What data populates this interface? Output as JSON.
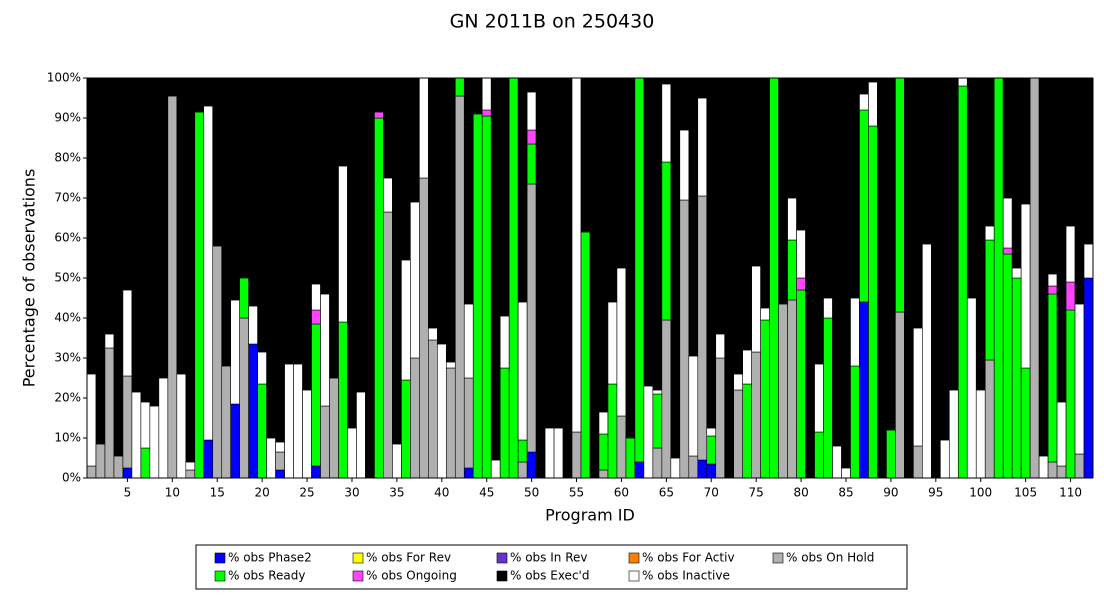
{
  "chart_data": {
    "type": "stacked_bar",
    "title": "GN 2011B on 250430",
    "x_label": "Program ID",
    "y_label": "Percentage of observations",
    "ylim": [
      0,
      100
    ],
    "yticks": [
      {
        "value": 0,
        "label": "0%"
      },
      {
        "value": 10,
        "label": "10%"
      },
      {
        "value": 20,
        "label": "20%"
      },
      {
        "value": 30,
        "label": "30%"
      },
      {
        "value": 40,
        "label": "40%"
      },
      {
        "value": 50,
        "label": "50%"
      },
      {
        "value": 60,
        "label": "60%"
      },
      {
        "value": 70,
        "label": "70%"
      },
      {
        "value": 80,
        "label": "80%"
      },
      {
        "value": 90,
        "label": "90%"
      },
      {
        "value": 100,
        "label": "100%"
      }
    ],
    "legend": "bottom",
    "categories": [
      null,
      null,
      null,
      null,
      5,
      null,
      null,
      null,
      null,
      10,
      null,
      null,
      null,
      null,
      15,
      null,
      null,
      null,
      null,
      20,
      null,
      null,
      null,
      null,
      25,
      null,
      null,
      null,
      null,
      30,
      null,
      null,
      null,
      null,
      35,
      null,
      null,
      null,
      null,
      40,
      null,
      null,
      null,
      null,
      45,
      null,
      null,
      null,
      null,
      50,
      null,
      null,
      null,
      null,
      55,
      null,
      null,
      null,
      null,
      60,
      null,
      null,
      null,
      null,
      65,
      null,
      null,
      null,
      null,
      70,
      null,
      null,
      null,
      null,
      75,
      null,
      null,
      null,
      null,
      80,
      null,
      null,
      null,
      null,
      85,
      null,
      null,
      null,
      null,
      90,
      null,
      null,
      null,
      null,
      95,
      null,
      null,
      null,
      null,
      100,
      null,
      null,
      null,
      null,
      105,
      null,
      null,
      null,
      null,
      110,
      null,
      null
    ],
    "series": [
      {
        "name": "% obs Phase2",
        "color": "#0000ff",
        "values": [
          0,
          0,
          0,
          0,
          2.5,
          0,
          0,
          0,
          0,
          0,
          0,
          0,
          0,
          9.5,
          0,
          0,
          18.5,
          0,
          33.5,
          0,
          0,
          2,
          0,
          0,
          0,
          3,
          0,
          0,
          0,
          0,
          0,
          0,
          0,
          0,
          0,
          0,
          0,
          0,
          0,
          0,
          0,
          0,
          2.5,
          0,
          0,
          0,
          0,
          0,
          0,
          6.5,
          0,
          0,
          0,
          0,
          0,
          0,
          0,
          0,
          0,
          0,
          0,
          4,
          0,
          0,
          0,
          0,
          0,
          0,
          4.5,
          3.5,
          0,
          0,
          0,
          0,
          0,
          0,
          0,
          0,
          0,
          0,
          0,
          0,
          0,
          0,
          0,
          0,
          44,
          0,
          0,
          0,
          0,
          0,
          0,
          0,
          0,
          0,
          0,
          0,
          0,
          0,
          0,
          0,
          0,
          0,
          0,
          0,
          0,
          0,
          0,
          0,
          0,
          50
        ]
      },
      {
        "name": "% obs For Rev",
        "color": "#ffff00",
        "values": [
          0,
          0,
          0,
          0,
          0,
          0,
          0,
          0,
          0,
          0,
          0,
          0,
          0,
          0,
          0,
          0,
          0,
          0,
          0,
          0,
          0,
          0,
          0,
          0,
          0,
          0,
          0,
          0,
          0,
          0,
          0,
          0,
          0,
          0,
          0,
          0,
          0,
          0,
          0,
          0,
          0,
          0,
          0,
          0,
          0,
          0,
          0,
          0,
          0,
          0,
          0,
          0,
          0,
          0,
          0,
          0,
          0,
          0,
          0,
          0,
          0,
          0,
          0,
          0,
          0,
          0,
          0,
          0,
          0,
          0,
          0,
          0,
          0,
          0,
          0,
          0,
          0,
          0,
          0,
          0,
          0,
          0,
          0,
          0,
          0,
          0,
          0,
          0,
          0,
          0,
          0,
          0,
          0,
          0,
          0,
          0,
          0,
          0,
          0,
          0,
          0,
          0,
          0,
          0,
          0,
          0,
          0,
          0,
          0,
          0,
          0,
          0
        ]
      },
      {
        "name": "% obs In Rev",
        "color": "#6633cc",
        "values": [
          0,
          0,
          0,
          0,
          0,
          0,
          0,
          0,
          0,
          0,
          0,
          0,
          0,
          0,
          0,
          0,
          0,
          0,
          0,
          0,
          0,
          0,
          0,
          0,
          0,
          0,
          0,
          0,
          0,
          0,
          0,
          0,
          0,
          0,
          0,
          0,
          0,
          0,
          0,
          0,
          0,
          0,
          0,
          0,
          0,
          0,
          0,
          0,
          0,
          0,
          0,
          0,
          0,
          0,
          0,
          0,
          0,
          0,
          0,
          0,
          0,
          0,
          0,
          0,
          0,
          0,
          0,
          0,
          0,
          0,
          0,
          0,
          0,
          0,
          0,
          0,
          0,
          0,
          0,
          0,
          0,
          0,
          0,
          0,
          0,
          0,
          0,
          0,
          0,
          0,
          0,
          0,
          0,
          0,
          0,
          0,
          0,
          0,
          0,
          0,
          0,
          0,
          0,
          0,
          0,
          0,
          0,
          0,
          0,
          0,
          0,
          0
        ]
      },
      {
        "name": "% obs For Activ",
        "color": "#ff8000",
        "values": [
          0,
          0,
          0,
          0,
          0,
          0,
          0,
          0,
          0,
          0,
          0,
          0,
          0,
          0,
          0,
          0,
          0,
          0,
          0,
          0,
          0,
          0,
          0,
          0,
          0,
          0,
          0,
          0,
          0,
          0,
          0,
          0,
          0,
          0,
          0,
          0,
          0,
          0,
          0,
          0,
          0,
          0,
          0,
          0,
          0,
          0,
          0,
          0,
          0,
          0,
          0,
          0,
          0,
          0,
          0,
          0,
          0,
          0,
          0,
          0,
          0,
          0,
          0,
          0,
          0,
          0,
          0,
          0,
          0,
          0,
          0,
          0,
          0,
          0,
          0,
          0,
          0,
          0,
          0,
          0,
          0,
          0,
          0,
          0,
          0,
          0,
          0,
          0,
          0,
          0,
          0,
          0,
          0,
          0,
          0,
          0,
          0,
          0,
          0,
          0,
          0,
          0,
          0,
          0,
          0,
          0,
          0,
          0,
          0,
          0,
          0,
          0
        ]
      },
      {
        "name": "% obs On Hold",
        "color": "#b0b0b0",
        "values": [
          3,
          8.5,
          32.5,
          5.5,
          23,
          0,
          0,
          0,
          0,
          95.5,
          0,
          2,
          0,
          0,
          58,
          28,
          0,
          40,
          0,
          0,
          0,
          4.5,
          0,
          0,
          0,
          0,
          18,
          25,
          0,
          0,
          0,
          0,
          0,
          66.5,
          0,
          0,
          30,
          75,
          34.5,
          0,
          27.5,
          95.5,
          22.5,
          0,
          0,
          0,
          0,
          0,
          4,
          67,
          0,
          0,
          0,
          0,
          11.5,
          0,
          0,
          2,
          0,
          15.5,
          0,
          0,
          0,
          7.5,
          39.5,
          0,
          69.5,
          5.5,
          66,
          0,
          30,
          0,
          22,
          0,
          31.5,
          0,
          0,
          43.5,
          44.5,
          0,
          0,
          0,
          0,
          0,
          0,
          0,
          0,
          0,
          0,
          0,
          41.5,
          0,
          8,
          0,
          0,
          0,
          0,
          0,
          0,
          0,
          29.5,
          0,
          0,
          0,
          0,
          100,
          0,
          4,
          3,
          0,
          6,
          0
        ]
      },
      {
        "name": "% obs Ready",
        "color": "#00ff00",
        "values": [
          0,
          0,
          0,
          0,
          0,
          0,
          7.5,
          0,
          0,
          0,
          0,
          0,
          91.5,
          0,
          0,
          0,
          0,
          10,
          0,
          23.5,
          0,
          0,
          0,
          0,
          0,
          35.5,
          0,
          0,
          39,
          0,
          0,
          0,
          90,
          0,
          0,
          24.5,
          0,
          0,
          0,
          0,
          0,
          4.5,
          0,
          91,
          90.5,
          0,
          27.5,
          100,
          5.5,
          10,
          0,
          0,
          0,
          0,
          0,
          61.5,
          0,
          9,
          23.5,
          0,
          10,
          96,
          0,
          13.5,
          39.5,
          0,
          0,
          0,
          0,
          7,
          0,
          0,
          0,
          23.5,
          0,
          39.5,
          100,
          0,
          15,
          47,
          0,
          11.5,
          40,
          0,
          0,
          28,
          48,
          88,
          0,
          12,
          58.5,
          0,
          0,
          0,
          0,
          0,
          0,
          98,
          0,
          0,
          30,
          100,
          56,
          50,
          27.5,
          0,
          0,
          42,
          0,
          42,
          0,
          0
        ]
      },
      {
        "name": "% obs Ongoing",
        "color": "#ff44ff",
        "values": [
          0,
          0,
          0,
          0,
          0,
          0,
          0,
          0,
          0,
          0,
          0,
          0,
          0,
          0,
          0,
          0,
          0,
          0,
          0,
          0,
          0,
          0,
          0,
          0,
          0,
          3.5,
          0,
          0,
          0,
          0,
          0,
          0,
          1.5,
          0,
          0,
          0,
          0,
          0,
          0,
          0,
          0,
          0,
          0,
          0,
          1.5,
          0,
          0,
          0,
          0,
          3.5,
          0,
          0,
          0,
          0,
          0,
          0,
          0,
          0,
          0,
          0,
          0,
          0,
          0,
          0,
          0,
          0,
          0,
          0,
          0,
          0,
          0,
          0,
          0,
          0,
          0,
          0,
          0,
          0,
          0,
          3,
          0,
          0,
          0,
          0,
          0,
          0,
          0,
          0,
          0,
          0,
          0,
          0,
          0,
          0,
          0,
          0,
          0,
          0,
          0,
          0,
          0,
          0,
          1.5,
          0,
          0,
          0,
          0,
          2,
          0,
          7,
          0,
          0
        ]
      },
      {
        "name": "% obs Exec'd",
        "color": "#000000",
        "values": [
          74,
          91.5,
          64,
          94.5,
          53,
          78.5,
          81,
          82,
          75,
          4.5,
          74,
          96,
          8.5,
          7,
          42,
          72,
          55.5,
          50,
          57,
          68.5,
          90,
          91,
          71.5,
          71.5,
          78,
          51.5,
          54,
          75,
          22,
          87.5,
          78.5,
          100,
          8.5,
          25,
          91.5,
          45.5,
          31,
          0,
          62.5,
          66.5,
          71,
          0,
          56.5,
          9,
          0,
          95.5,
          59.5,
          0,
          56,
          3.5,
          100,
          87.5,
          87.5,
          100,
          0,
          38.5,
          100,
          83.5,
          56,
          47.5,
          90,
          0,
          77,
          78,
          1.5,
          95,
          13,
          69.5,
          5,
          87.5,
          64,
          100,
          74,
          68,
          47,
          57.5,
          0,
          56.5,
          30,
          38,
          100,
          71.5,
          55,
          92,
          97.5,
          55,
          4,
          1,
          100,
          88,
          0,
          100,
          62.5,
          41.5,
          100,
          90.5,
          78,
          0,
          55,
          78,
          37,
          0,
          30,
          47.5,
          31.5,
          0,
          94.5,
          49,
          81,
          37,
          56.5,
          41.5
        ]
      },
      {
        "name": "% obs Inactive",
        "color": "#ffffff",
        "values": [
          23,
          0,
          3.5,
          0,
          21.5,
          21.5,
          11.5,
          18,
          25,
          0,
          26,
          2,
          0,
          83.5,
          0,
          0,
          26,
          0,
          9.5,
          8,
          10,
          2.5,
          28.5,
          28.5,
          22,
          6.5,
          28,
          0,
          39,
          12.5,
          21.5,
          0,
          0,
          8.5,
          8.5,
          30,
          39,
          25,
          3,
          33.5,
          1.5,
          0,
          18.5,
          0,
          8,
          4.5,
          13,
          0,
          34.5,
          9.5,
          0,
          12.5,
          12.5,
          0,
          88.5,
          0,
          0,
          5.5,
          20.5,
          37,
          0,
          0,
          23,
          1,
          19.5,
          5,
          17.5,
          25,
          24.5,
          2,
          6,
          0,
          4,
          8.5,
          21.5,
          3,
          0,
          0,
          10.5,
          12,
          0,
          17,
          5,
          8,
          2.5,
          17,
          4,
          11,
          0,
          0,
          0,
          0,
          29.5,
          58.5,
          0,
          9.5,
          22,
          2,
          45,
          22,
          3.5,
          0,
          12.5,
          2.5,
          41,
          0,
          5.5,
          3,
          16,
          14,
          37.5,
          8.5
        ]
      }
    ]
  }
}
